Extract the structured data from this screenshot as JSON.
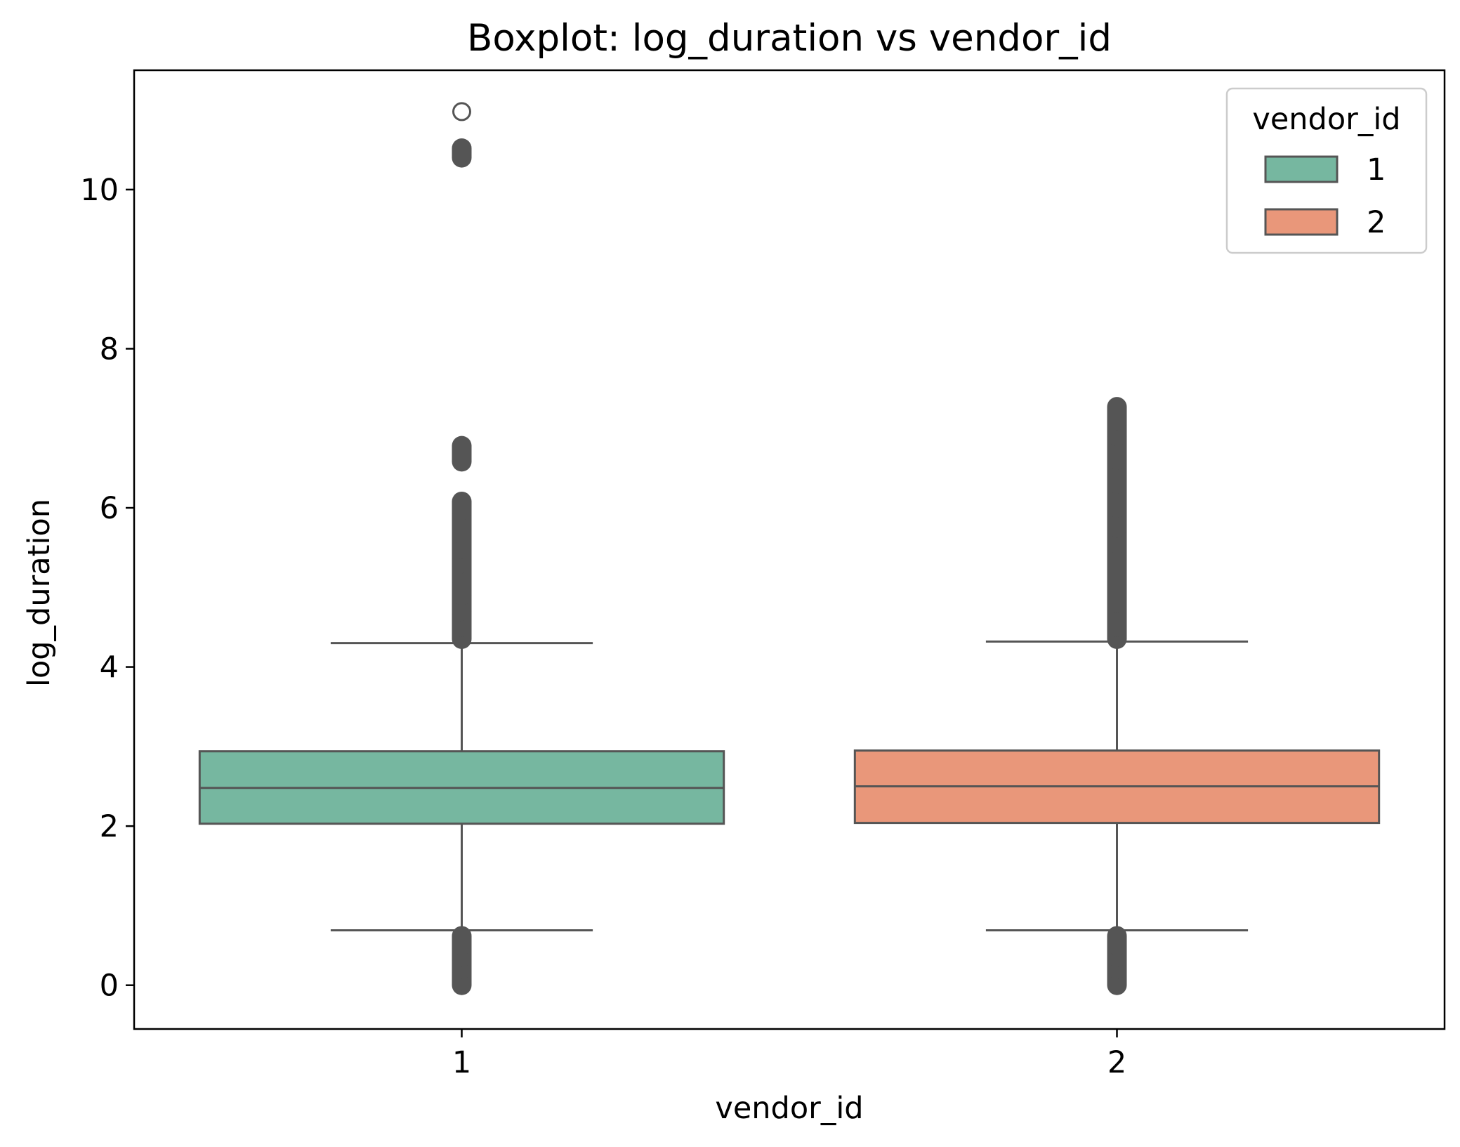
{
  "chart_data": {
    "type": "boxplot",
    "title": "Boxplot: log_duration vs vendor_id",
    "xlabel": "vendor_id",
    "ylabel": "log_duration",
    "ylim": [
      -0.55,
      11.5
    ],
    "yticks": [
      0,
      2,
      4,
      6,
      8,
      10
    ],
    "grid": false,
    "legend": {
      "title": "vendor_id",
      "placement": "top-right",
      "entries": [
        {
          "label": "1",
          "color": "#76b7a0"
        },
        {
          "label": "2",
          "color": "#e9977a"
        }
      ]
    },
    "categories": [
      "1",
      "2"
    ],
    "boxes": [
      {
        "category": "1",
        "color": "#76b7a0",
        "whisker_low": 0.69,
        "q1": 2.03,
        "median": 2.48,
        "q3": 2.94,
        "whisker_high": 4.3,
        "outliers": [
          10.98,
          10.52,
          10.47,
          10.4,
          6.78,
          6.58,
          6.08,
          5.97,
          5.67,
          5.48,
          5.4,
          5.3,
          5.1,
          4.9,
          4.7,
          4.5,
          4.35,
          0.62,
          0.5,
          0.35,
          0.2,
          0.05,
          0.0
        ]
      },
      {
        "category": "2",
        "color": "#e9977a",
        "whisker_low": 0.69,
        "q1": 2.04,
        "median": 2.5,
        "q3": 2.95,
        "whisker_high": 4.32,
        "outliers": [
          7.27,
          7.1,
          6.9,
          6.6,
          6.3,
          6.0,
          5.75,
          5.55,
          5.4,
          5.1,
          4.8,
          4.5,
          4.35,
          0.62,
          0.5,
          0.35,
          0.2,
          0.05,
          0.0
        ]
      }
    ],
    "colors": {
      "edge": "#555555",
      "axes": "#000000"
    }
  }
}
